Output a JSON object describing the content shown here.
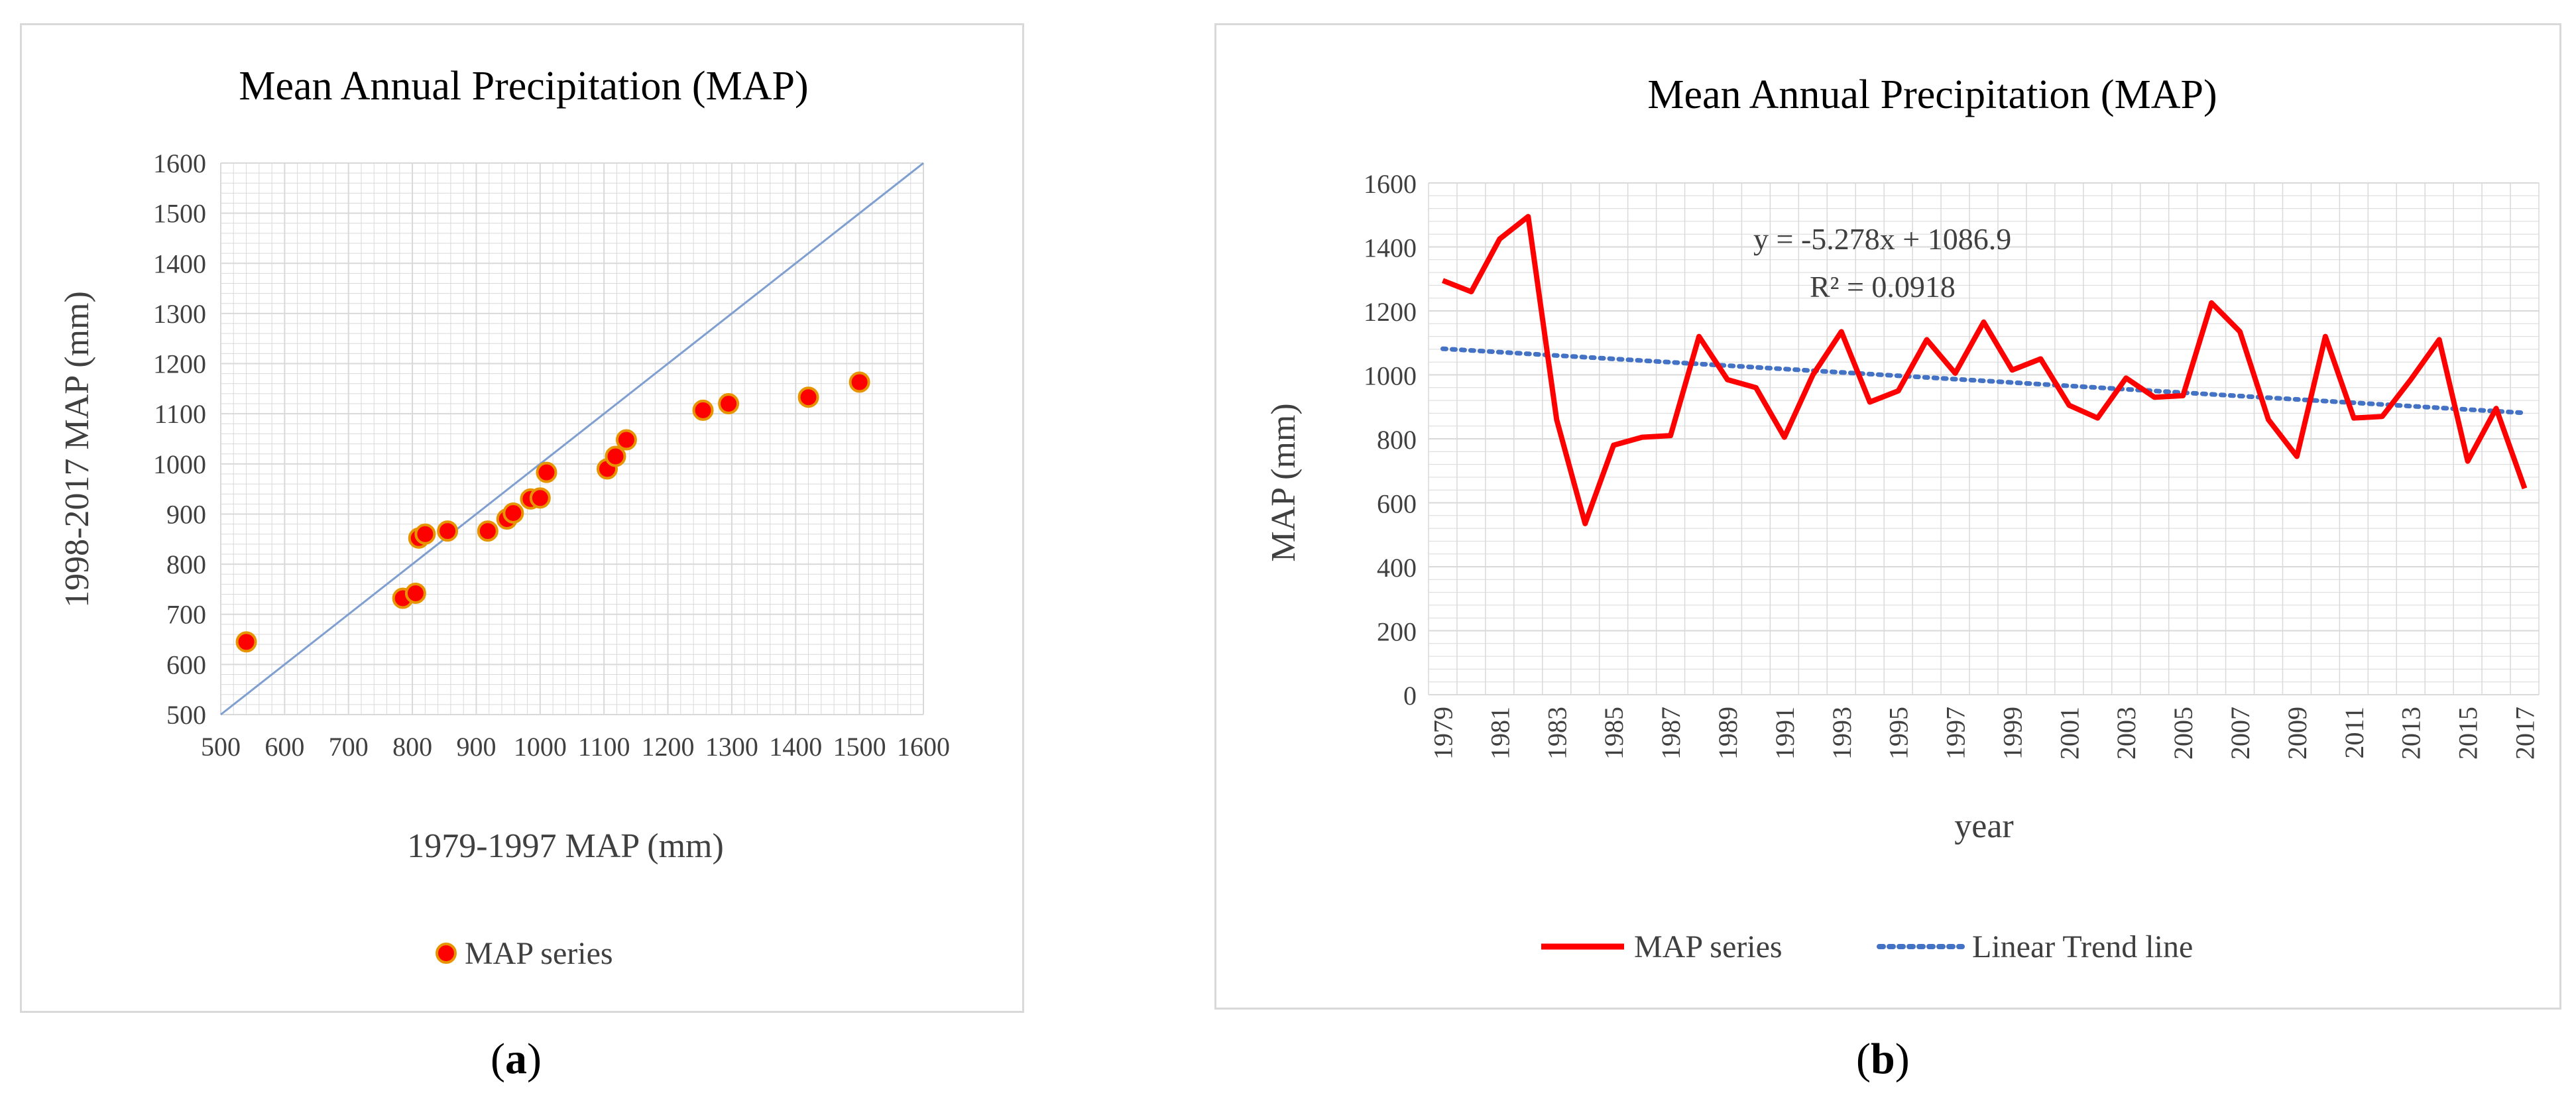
{
  "colors": {
    "series": "#ff0000",
    "marker_edge": "#e69500",
    "diagonal": "#7f9fd0",
    "trend": "#4472c4",
    "grid": "#d9d9d9"
  },
  "panels": {
    "a_label": "a",
    "b_label": "b"
  },
  "chart_data": [
    {
      "type": "scatter",
      "title": "Mean Annual Precipitation (MAP)",
      "xlabel": "1979-1997 MAP (mm)",
      "ylabel": "1998-2017 MAP (mm)",
      "xlim": [
        500,
        1600
      ],
      "ylim": [
        500,
        1600
      ],
      "xticks": [
        500,
        600,
        700,
        800,
        900,
        1000,
        1100,
        1200,
        1300,
        1400,
        1500,
        1600
      ],
      "yticks": [
        500,
        600,
        700,
        800,
        900,
        1000,
        1100,
        1200,
        1300,
        1400,
        1500,
        1600
      ],
      "legend": "MAP series",
      "legend_position": "bottom",
      "reference_line": "1:1",
      "points": [
        {
          "x": 540,
          "y": 645
        },
        {
          "x": 785,
          "y": 732
        },
        {
          "x": 805,
          "y": 742
        },
        {
          "x": 810,
          "y": 852
        },
        {
          "x": 820,
          "y": 860
        },
        {
          "x": 855,
          "y": 866
        },
        {
          "x": 918,
          "y": 866
        },
        {
          "x": 948,
          "y": 890
        },
        {
          "x": 958,
          "y": 902
        },
        {
          "x": 985,
          "y": 930
        },
        {
          "x": 1000,
          "y": 932
        },
        {
          "x": 1010,
          "y": 983
        },
        {
          "x": 1105,
          "y": 990
        },
        {
          "x": 1118,
          "y": 1015
        },
        {
          "x": 1135,
          "y": 1048
        },
        {
          "x": 1255,
          "y": 1107
        },
        {
          "x": 1295,
          "y": 1120
        },
        {
          "x": 1420,
          "y": 1133
        },
        {
          "x": 1500,
          "y": 1163
        }
      ]
    },
    {
      "type": "line",
      "title": "Mean Annual Precipitation (MAP)",
      "xlabel": "year",
      "ylabel": "MAP (mm)",
      "ylim": [
        0,
        1600
      ],
      "yticks": [
        0,
        200,
        400,
        600,
        800,
        1000,
        1200,
        1400,
        1600
      ],
      "x": [
        1979,
        1980,
        1981,
        1982,
        1983,
        1984,
        1985,
        1986,
        1987,
        1988,
        1989,
        1990,
        1991,
        1992,
        1993,
        1994,
        1995,
        1996,
        1997,
        1998,
        1999,
        2000,
        2001,
        2002,
        2003,
        2004,
        2005,
        2006,
        2007,
        2008,
        2009,
        2010,
        2011,
        2012,
        2013,
        2014,
        2015,
        2016,
        2017
      ],
      "xtick_labels": [
        "1979",
        "1981",
        "1983",
        "1985",
        "1987",
        "1989",
        "1991",
        "1993",
        "1995",
        "1997",
        "1999",
        "2001",
        "2003",
        "2005",
        "2007",
        "2009",
        "2011",
        "2013",
        "2015",
        "2017"
      ],
      "series": [
        {
          "name": "MAP series",
          "values": [
            1295,
            1260,
            1425,
            1495,
            860,
            535,
            780,
            805,
            810,
            1120,
            985,
            960,
            805,
            1000,
            1135,
            915,
            950,
            1110,
            1005,
            1165,
            1015,
            1050,
            905,
            865,
            990,
            930,
            935,
            1225,
            1135,
            860,
            745,
            1120,
            865,
            870,
            985,
            1110,
            730,
            895,
            645
          ]
        }
      ],
      "trendline": {
        "name": "Linear Trend line",
        "slope": -5.278,
        "intercept": 1086.9
      },
      "equation": "y = -5.278x + 1086.9",
      "r_squared": "R² = 0.0918",
      "legend_position": "bottom"
    }
  ]
}
